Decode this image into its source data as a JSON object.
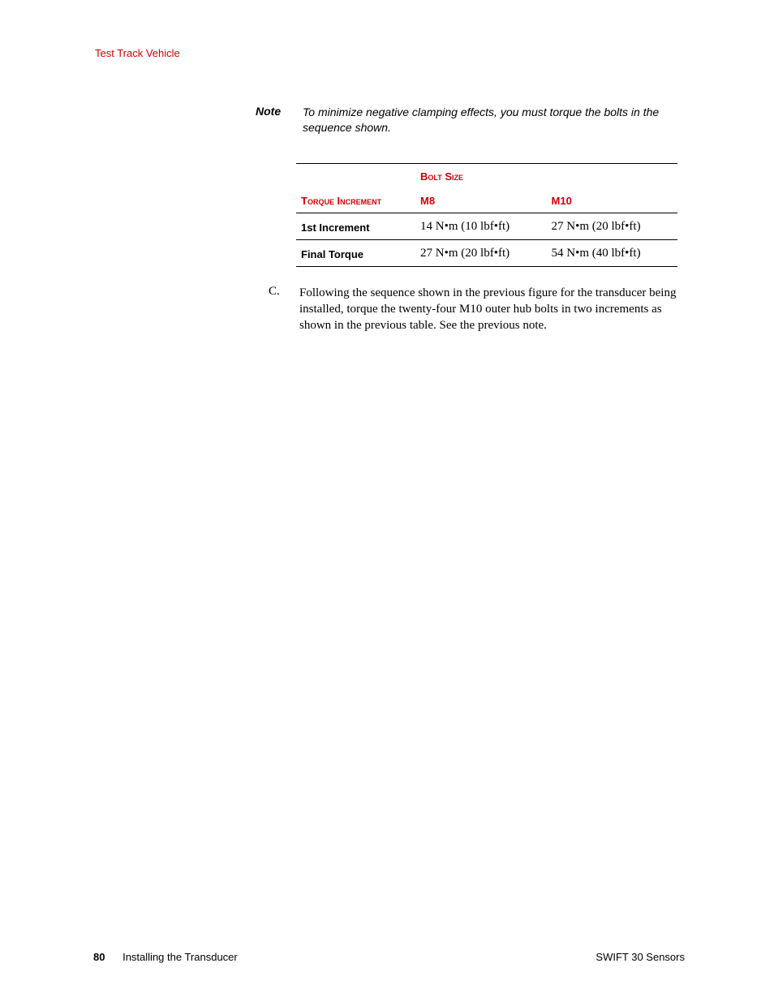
{
  "header": {
    "section": "Test Track Vehicle"
  },
  "note": {
    "label": "Note",
    "body": "To minimize negative clamping effects, you must torque the bolts in the sequence shown."
  },
  "table": {
    "super_header": "Bolt Size",
    "col0": "Torque Increment",
    "col1": "M8",
    "col2": "M10",
    "rows": [
      {
        "label": "1st Increment",
        "m8": "14 N•m (10 lbf•ft)",
        "m10": "27 N•m (20 lbf•ft)"
      },
      {
        "label": "Final Torque",
        "m8": "27 N•m (20 lbf•ft)",
        "m10": "54 N•m (40 lbf•ft)"
      }
    ]
  },
  "paragraph": {
    "marker": "C.",
    "body": "Following the sequence shown in the previous figure for the transducer being installed, torque the twenty-four M10 outer hub bolts in two increments as shown in the previous table. See the previous note."
  },
  "footer": {
    "page_number": "80",
    "chapter": "Installing the Transducer",
    "product": "SWIFT 30 Sensors"
  }
}
